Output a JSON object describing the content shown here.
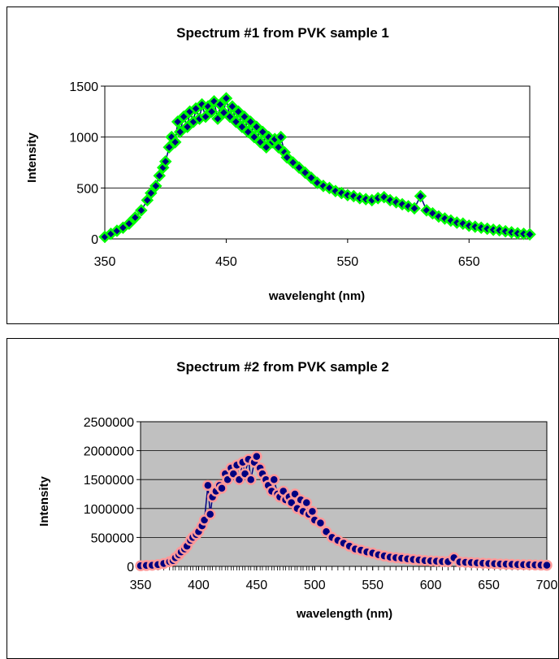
{
  "chart_data": [
    {
      "type": "scatter",
      "title": "Spectrum #1 from PVK sample 1",
      "xlabel": "wavelenght (nm)",
      "ylabel": "Intensity",
      "xlim": [
        350,
        700
      ],
      "ylim": [
        0,
        1500
      ],
      "xticks": [
        "350",
        "450",
        "550",
        "650"
      ],
      "xtick_values": [
        350,
        450,
        550,
        650
      ],
      "yticks": [
        "0",
        "500",
        "1000",
        "1500"
      ],
      "ytick_values": [
        0,
        500,
        1000,
        1500
      ],
      "grid": true,
      "plot_background": "#ffffff",
      "marker": "diamond",
      "marker_fill": "#000080",
      "marker_edge": "#00ff00",
      "line_color": "#000080",
      "x": [
        350,
        355,
        360,
        365,
        370,
        375,
        380,
        385,
        388,
        392,
        395,
        398,
        400,
        403,
        405,
        408,
        410,
        412,
        415,
        418,
        420,
        423,
        425,
        428,
        430,
        433,
        435,
        438,
        440,
        443,
        445,
        448,
        450,
        453,
        455,
        458,
        460,
        463,
        465,
        468,
        470,
        473,
        475,
        478,
        480,
        483,
        485,
        488,
        490,
        493,
        495,
        498,
        500,
        505,
        510,
        515,
        520,
        525,
        530,
        535,
        540,
        545,
        550,
        555,
        560,
        565,
        570,
        575,
        580,
        585,
        590,
        595,
        600,
        605,
        610,
        615,
        620,
        625,
        630,
        635,
        640,
        645,
        650,
        655,
        660,
        665,
        670,
        675,
        680,
        685,
        690,
        695,
        700
      ],
      "y": [
        20,
        50,
        80,
        110,
        150,
        210,
        280,
        380,
        450,
        520,
        620,
        700,
        760,
        900,
        1000,
        950,
        1150,
        1050,
        1200,
        1100,
        1250,
        1150,
        1280,
        1180,
        1320,
        1200,
        1300,
        1250,
        1350,
        1180,
        1320,
        1240,
        1380,
        1200,
        1300,
        1150,
        1250,
        1100,
        1200,
        1050,
        1150,
        1000,
        1100,
        950,
        1050,
        900,
        1000,
        950,
        980,
        900,
        1000,
        850,
        800,
        750,
        700,
        650,
        600,
        550,
        520,
        500,
        470,
        450,
        430,
        420,
        400,
        390,
        380,
        400,
        410,
        380,
        360,
        340,
        320,
        300,
        420,
        280,
        250,
        220,
        200,
        180,
        160,
        150,
        130,
        120,
        110,
        100,
        90,
        85,
        75,
        65,
        55,
        50,
        45
      ]
    },
    {
      "type": "scatter",
      "title": "Spectrum #2 from PVK sample 2",
      "xlabel": "wavelength (nm)",
      "ylabel": "Intensity",
      "xlim": [
        350,
        700
      ],
      "ylim": [
        0,
        2500000
      ],
      "xticks": [
        "350",
        "400",
        "450",
        "500",
        "550",
        "600",
        "650",
        "700"
      ],
      "xtick_values": [
        350,
        400,
        450,
        500,
        550,
        600,
        650,
        700
      ],
      "yticks": [
        "0",
        "500000",
        "1000000",
        "1500000",
        "2000000",
        "2500000"
      ],
      "ytick_values": [
        0,
        500000,
        1000000,
        1500000,
        2000000,
        2500000
      ],
      "grid": true,
      "plot_background": "#c0c0c0",
      "marker": "circle",
      "marker_fill": "#000080",
      "marker_edge": "#ff9999",
      "line_color": "#000080",
      "x": [
        350,
        355,
        360,
        365,
        370,
        375,
        378,
        380,
        383,
        385,
        388,
        390,
        393,
        395,
        398,
        400,
        403,
        405,
        408,
        410,
        412,
        415,
        418,
        420,
        423,
        425,
        428,
        430,
        433,
        435,
        438,
        440,
        443,
        445,
        448,
        450,
        453,
        455,
        458,
        460,
        463,
        465,
        468,
        470,
        473,
        475,
        478,
        480,
        483,
        485,
        488,
        490,
        493,
        495,
        498,
        500,
        505,
        510,
        515,
        520,
        525,
        530,
        535,
        540,
        545,
        550,
        555,
        560,
        565,
        570,
        575,
        580,
        585,
        590,
        595,
        600,
        605,
        610,
        615,
        620,
        625,
        630,
        635,
        640,
        645,
        650,
        655,
        660,
        665,
        670,
        675,
        680,
        685,
        690,
        695,
        700
      ],
      "y": [
        10000,
        15000,
        20000,
        30000,
        50000,
        80000,
        100000,
        150000,
        200000,
        250000,
        300000,
        350000,
        450000,
        500000,
        550000,
        600000,
        700000,
        800000,
        1400000,
        900000,
        1200000,
        1300000,
        1400000,
        1350000,
        1600000,
        1500000,
        1700000,
        1600000,
        1750000,
        1500000,
        1800000,
        1600000,
        1850000,
        1500000,
        1800000,
        1900000,
        1700000,
        1600000,
        1500000,
        1400000,
        1300000,
        1500000,
        1250000,
        1200000,
        1300000,
        1150000,
        1200000,
        1100000,
        1250000,
        1000000,
        1150000,
        950000,
        1100000,
        900000,
        950000,
        800000,
        750000,
        600000,
        500000,
        450000,
        400000,
        350000,
        300000,
        280000,
        250000,
        230000,
        200000,
        180000,
        160000,
        150000,
        140000,
        130000,
        120000,
        110000,
        100000,
        95000,
        90000,
        85000,
        80000,
        150000,
        75000,
        70000,
        65000,
        60000,
        55000,
        50000,
        45000,
        40000,
        38000,
        35000,
        32000,
        30000,
        28000,
        25000,
        22000,
        20000
      ]
    }
  ]
}
